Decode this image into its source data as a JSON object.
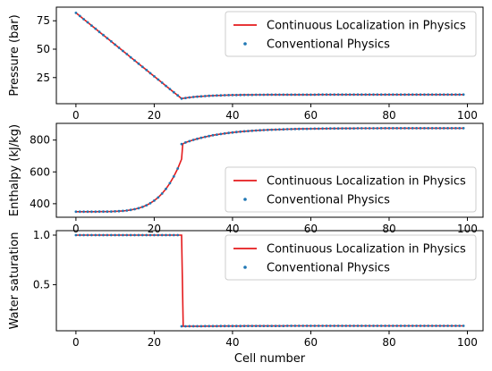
{
  "chart_data": [
    {
      "type": "line",
      "ylabel": "Pressure (bar)",
      "xlabel": "",
      "xlim": [
        -5,
        104
      ],
      "ylim": [
        2,
        87
      ],
      "xticks": [
        0,
        20,
        40,
        60,
        80,
        100
      ],
      "xtick_labels": [
        "0",
        "20",
        "40",
        "60",
        "80",
        "100"
      ],
      "yticks": [
        25,
        50,
        75
      ],
      "ytick_labels": [
        "25",
        "50",
        "75"
      ],
      "show_xtick_labels": true,
      "legend_position": "upper right",
      "series": [
        {
          "name": "Continuous Localization in Physics",
          "style": "line",
          "color": "#e41a1c"
        },
        {
          "name": "Conventional Physics",
          "style": "dots",
          "color": "#1f77b4"
        }
      ],
      "x_range": [
        0,
        99
      ],
      "profile": "pressure",
      "key_points": {
        "start": 82,
        "min_cell": 27,
        "min": 6.5,
        "end": 10
      }
    },
    {
      "type": "line",
      "ylabel": "Enthalpy (kJ/kg)",
      "xlabel": "",
      "xlim": [
        -5,
        104
      ],
      "ylim": [
        315,
        905
      ],
      "xticks": [
        0,
        20,
        40,
        60,
        80,
        100
      ],
      "xtick_labels": [
        "0",
        "20",
        "40",
        "60",
        "80",
        "100"
      ],
      "yticks": [
        400,
        600,
        800
      ],
      "ytick_labels": [
        "400",
        "600",
        "800"
      ],
      "show_xtick_labels": true,
      "legend_position": "lower right",
      "series": [
        {
          "name": "Continuous Localization in Physics",
          "style": "line",
          "color": "#e41a1c"
        },
        {
          "name": "Conventional Physics",
          "style": "dots",
          "color": "#1f77b4"
        }
      ],
      "x_range": [
        0,
        99
      ],
      "profile": "enthalpy",
      "key_points": {
        "start": 350,
        "step_cell": 27,
        "step_low": 680,
        "step_high": 775,
        "end": 875
      }
    },
    {
      "type": "line",
      "ylabel": "Water saturation",
      "xlabel": "Cell number",
      "xlim": [
        -5,
        104
      ],
      "ylim": [
        0.035,
        1.045
      ],
      "xticks": [
        0,
        20,
        40,
        60,
        80,
        100
      ],
      "xtick_labels": [
        "0",
        "20",
        "40",
        "60",
        "80",
        "100"
      ],
      "yticks": [
        0.5,
        1.0
      ],
      "ytick_labels": [
        "0.5",
        "1.0"
      ],
      "show_xtick_labels": true,
      "legend_position": "upper right",
      "series": [
        {
          "name": "Continuous Localization in Physics",
          "style": "line",
          "color": "#e41a1c"
        },
        {
          "name": "Conventional Physics",
          "style": "dots",
          "color": "#1f77b4"
        }
      ],
      "x_range": [
        0,
        99
      ],
      "profile": "saturation",
      "key_points": {
        "high": 1.0,
        "front_cell": 27,
        "low": 0.08,
        "end": 0.085
      }
    }
  ]
}
